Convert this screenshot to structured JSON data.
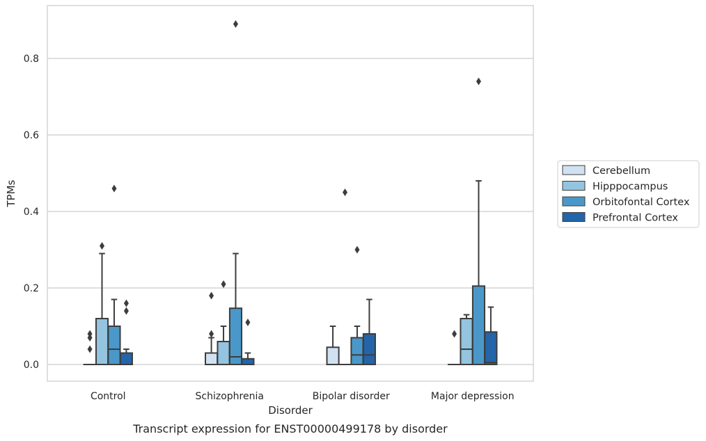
{
  "caption": "Transcript expression for ENST00000499178 by disorder",
  "chart_data": {
    "type": "boxplot",
    "xlabel": "Disorder",
    "ylabel": "TPMs",
    "ylim": [
      -0.042,
      0.94
    ],
    "yticks": [
      0.0,
      0.2,
      0.4,
      0.6,
      0.8
    ],
    "ytick_labels": [
      "0.0",
      "0.2",
      "0.4",
      "0.6",
      "0.8"
    ],
    "grid": "horizontal",
    "legend_position": "right",
    "categories": [
      "Control",
      "Schizophrenia",
      "Bipolar disorder",
      "Major depression"
    ],
    "series": [
      {
        "name": "Cerebellum",
        "color": "#d0e1f2",
        "boxes": [
          {
            "q1": 0.0,
            "median": 0.0,
            "q3": 0.0,
            "whislo": 0.0,
            "whishi": 0.0,
            "fliers": [
              0.04,
              0.07,
              0.08
            ]
          },
          {
            "q1": 0.0,
            "median": 0.0,
            "q3": 0.03,
            "whislo": 0.0,
            "whishi": 0.07,
            "fliers": [
              0.08,
              0.18
            ]
          },
          {
            "q1": 0.0,
            "median": 0.0,
            "q3": 0.045,
            "whislo": 0.0,
            "whishi": 0.1,
            "fliers": []
          },
          {
            "q1": 0.0,
            "median": 0.0,
            "q3": 0.0,
            "whislo": 0.0,
            "whishi": 0.0,
            "fliers": [
              0.08
            ]
          }
        ]
      },
      {
        "name": "Hipppocampus",
        "color": "#94c4df",
        "boxes": [
          {
            "q1": 0.0,
            "median": 0.0,
            "q3": 0.12,
            "whislo": 0.0,
            "whishi": 0.29,
            "fliers": [
              0.31
            ]
          },
          {
            "q1": 0.0,
            "median": 0.0,
            "q3": 0.06,
            "whislo": 0.0,
            "whishi": 0.1,
            "fliers": [
              0.21
            ]
          },
          {
            "q1": 0.0,
            "median": 0.0,
            "q3": 0.0,
            "whislo": 0.0,
            "whishi": 0.0,
            "fliers": [
              0.45
            ]
          },
          {
            "q1": 0.0,
            "median": 0.04,
            "q3": 0.12,
            "whislo": 0.0,
            "whishi": 0.13,
            "fliers": []
          }
        ]
      },
      {
        "name": "Orbitofontal Cortex",
        "color": "#4a98c9",
        "boxes": [
          {
            "q1": 0.0,
            "median": 0.04,
            "q3": 0.1,
            "whislo": 0.0,
            "whishi": 0.17,
            "fliers": [
              0.46
            ]
          },
          {
            "q1": 0.0,
            "median": 0.02,
            "q3": 0.147,
            "whislo": 0.0,
            "whishi": 0.29,
            "fliers": [
              0.89
            ]
          },
          {
            "q1": 0.0,
            "median": 0.025,
            "q3": 0.07,
            "whislo": 0.0,
            "whishi": 0.1,
            "fliers": [
              0.3
            ]
          },
          {
            "q1": 0.0,
            "median": 0.0,
            "q3": 0.205,
            "whislo": 0.0,
            "whishi": 0.48,
            "fliers": [
              0.74
            ]
          }
        ]
      },
      {
        "name": "Prefrontal Cortex",
        "color": "#2464a9",
        "boxes": [
          {
            "q1": 0.0,
            "median": 0.0,
            "q3": 0.03,
            "whislo": 0.0,
            "whishi": 0.04,
            "fliers": [
              0.14,
              0.16
            ]
          },
          {
            "q1": 0.0,
            "median": 0.0,
            "q3": 0.015,
            "whislo": 0.0,
            "whishi": 0.03,
            "fliers": [
              0.11
            ]
          },
          {
            "q1": 0.0,
            "median": 0.025,
            "q3": 0.08,
            "whislo": 0.0,
            "whishi": 0.17,
            "fliers": []
          },
          {
            "q1": 0.0,
            "median": 0.005,
            "q3": 0.085,
            "whislo": 0.0,
            "whishi": 0.15,
            "fliers": []
          }
        ]
      }
    ]
  }
}
